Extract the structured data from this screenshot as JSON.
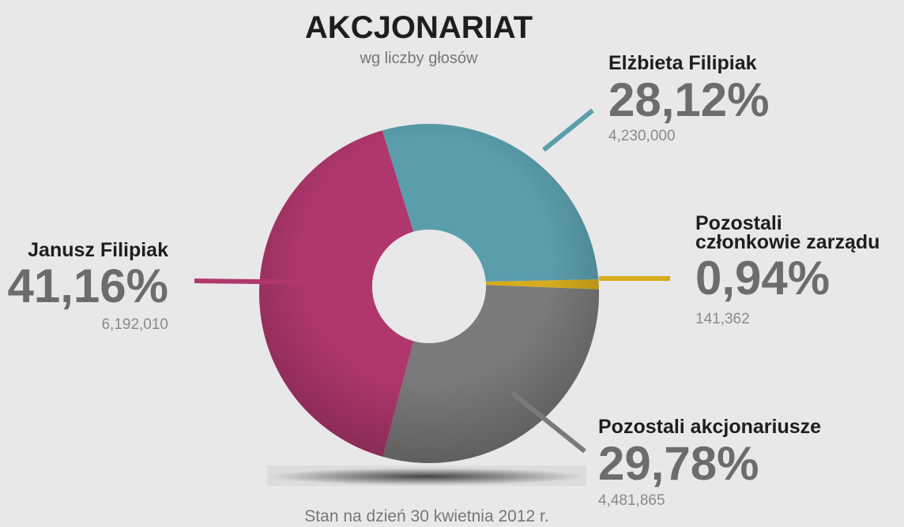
{
  "chart_data": {
    "type": "pie",
    "donut": true,
    "title": "AKCJONARIAT",
    "subtitle": "wg liczby głosów",
    "footnote": "Stan na dzień 30 kwietnia 2012 r.",
    "categories": [
      "Elżbieta Filipiak",
      "Pozostali członkowie zarządu",
      "Pozostali akcjonariusze",
      "Janusz Filipiak"
    ],
    "values": [
      28.12,
      0.94,
      29.78,
      41.16
    ],
    "value_labels": [
      "28,12%",
      "0,94%",
      "29,78%",
      "41,16%"
    ],
    "shares": [
      4230000,
      141362,
      4481865,
      6192010
    ],
    "shares_labels": [
      "4,230,000",
      "141,362",
      "4,481,865",
      "6,192,010"
    ],
    "colors": [
      "#5a9dab",
      "#d5ac1c",
      "#7a7a7a",
      "#b0376e"
    ]
  }
}
